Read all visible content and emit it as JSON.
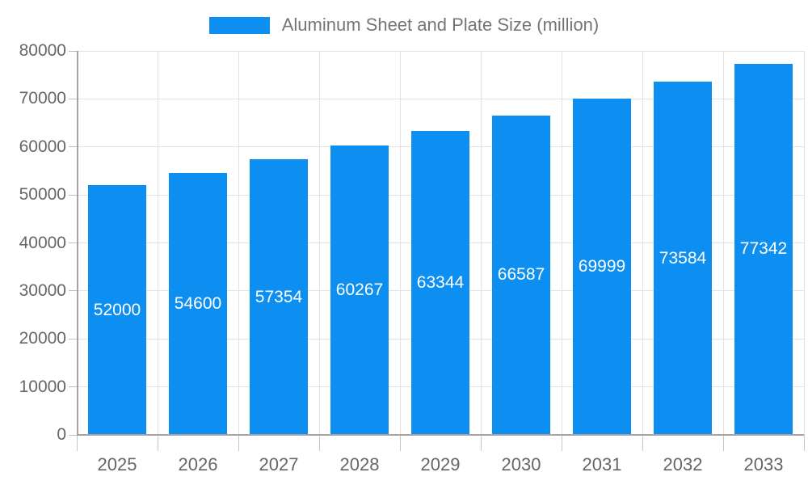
{
  "legend": {
    "label": "Aluminum Sheet and Plate Size (million)"
  },
  "colors": {
    "bar": "#0d8ff2",
    "grid": "#e3e3e3",
    "axis": "#a3a3a3",
    "tick": "#bdbdbd",
    "axis_text": "#666666",
    "legend_text": "#757575",
    "value_text": "#ffffff",
    "background": "#ffffff"
  },
  "chart_data": {
    "type": "bar",
    "title": "",
    "xlabel": "",
    "ylabel": "",
    "categories": [
      "2025",
      "2026",
      "2027",
      "2028",
      "2029",
      "2030",
      "2031",
      "2032",
      "2033"
    ],
    "series": [
      {
        "name": "Aluminum Sheet and Plate Size (million)",
        "values": [
          52000,
          54600,
          57354,
          60267,
          63344,
          66587,
          69999,
          73584,
          77342
        ]
      }
    ],
    "ylim": [
      0,
      80000
    ],
    "ytick_step": 10000,
    "ytick_labels": [
      "0",
      "10000",
      "20000",
      "30000",
      "40000",
      "50000",
      "60000",
      "70000",
      "80000"
    ],
    "grid": true,
    "legend_position": "top-center",
    "value_labels": "inside-center-white"
  }
}
